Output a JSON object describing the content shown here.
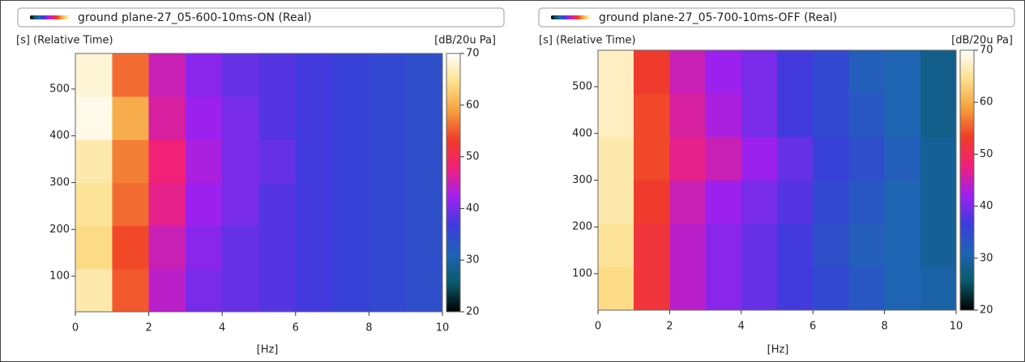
{
  "chart_data": [
    {
      "type": "heatmap",
      "title": "ground plane-27_05-600-10ms-ON (Real)",
      "y_label": "[s] (Relative Time)",
      "x_label": "[Hz]",
      "colorbar_label": "[dB/20u Pa]",
      "xlim": [
        0,
        10
      ],
      "xticks": [
        0,
        2,
        4,
        6,
        8,
        10
      ],
      "ylim": [
        24,
        576
      ],
      "yticks": [
        100,
        200,
        300,
        400,
        500
      ],
      "clim": [
        20,
        70
      ],
      "cticks": [
        20,
        30,
        40,
        50,
        60,
        70
      ],
      "colormap": [
        "#000000",
        "#0a5a6a",
        "#1e64b4",
        "#3c3cdc",
        "#a020f0",
        "#f0207a",
        "#f03c28",
        "#f5a03c",
        "#fde08c",
        "#ffffff"
      ],
      "values": [
        [
          66,
          55,
          44,
          40,
          39,
          38,
          37,
          36,
          35,
          34
        ],
        [
          64,
          54,
          45,
          41,
          39,
          38,
          37,
          36,
          35,
          34
        ],
        [
          65,
          56,
          47,
          42,
          40,
          38,
          37,
          36,
          35,
          34
        ],
        [
          66,
          57,
          48,
          43,
          40,
          39,
          37,
          36,
          35,
          34
        ],
        [
          69,
          60,
          46,
          42,
          40,
          38,
          37,
          36,
          35,
          34
        ],
        [
          68,
          56,
          45,
          41,
          39,
          38,
          37,
          36,
          35,
          34
        ]
      ]
    },
    {
      "type": "heatmap",
      "title": "ground plane-27_05-700-10ms-OFF (Real)",
      "y_label": "[s] (Relative Time)",
      "x_label": "[Hz]",
      "colorbar_label": "[dB/20u Pa]",
      "xlim": [
        0,
        10
      ],
      "xticks": [
        0,
        2,
        4,
        6,
        8,
        10
      ],
      "ylim": [
        22,
        578
      ],
      "yticks": [
        100,
        200,
        300,
        400,
        500
      ],
      "clim": [
        20,
        70
      ],
      "cticks": [
        20,
        30,
        40,
        50,
        60,
        70
      ],
      "colormap": [
        "#000000",
        "#0a5a6a",
        "#1e64b4",
        "#3c3cdc",
        "#a020f0",
        "#f0207a",
        "#f03c28",
        "#f5a03c",
        "#fde08c",
        "#ffffff"
      ],
      "values": [
        [
          64,
          52,
          44,
          41,
          39,
          37,
          35,
          33,
          31,
          30
        ],
        [
          65,
          52,
          44,
          41,
          39,
          37,
          34,
          32,
          31,
          29
        ],
        [
          66,
          53,
          45,
          42,
          40,
          38,
          35,
          33,
          31,
          29
        ],
        [
          66,
          54,
          47,
          45,
          42,
          39,
          36,
          34,
          32,
          29
        ],
        [
          67,
          54,
          46,
          43,
          40,
          37,
          35,
          33,
          31,
          28
        ],
        [
          67,
          53,
          45,
          42,
          40,
          37,
          35,
          32,
          31,
          28
        ]
      ]
    }
  ]
}
